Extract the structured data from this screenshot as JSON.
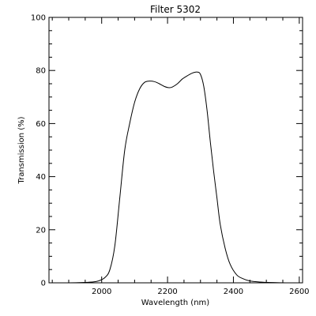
{
  "chart_data": {
    "type": "line",
    "title": "Filter 5302",
    "xlabel": "Wavelength (nm)",
    "ylabel": "Transmission (%)",
    "xlim": [
      1840,
      2610
    ],
    "ylim": [
      0,
      100
    ],
    "x_ticks": [
      2000,
      2200,
      2400,
      2600
    ],
    "y_ticks": [
      0,
      20,
      40,
      60,
      80,
      100
    ],
    "grid": false,
    "series": [
      {
        "color": "#000000",
        "x": [
          1840,
          1900,
          1940,
          1970,
          1990,
          2010,
          2025,
          2040,
          2055,
          2070,
          2085,
          2100,
          2115,
          2130,
          2145,
          2160,
          2175,
          2190,
          2205,
          2215,
          2230,
          2245,
          2260,
          2275,
          2290,
          2300,
          2310,
          2320,
          2330,
          2340,
          2350,
          2360,
          2375,
          2390,
          2410,
          2430,
          2450,
          2480,
          2520,
          2560,
          2600
        ],
        "y": [
          0,
          0,
          0.1,
          0.3,
          0.7,
          2,
          5,
          14,
          32,
          50,
          60,
          68,
          73,
          75.5,
          76,
          75.8,
          75,
          74,
          73.5,
          73.8,
          75,
          76.8,
          78,
          79,
          79.4,
          78.5,
          74,
          65,
          53,
          42,
          32,
          22,
          13,
          7,
          3,
          1.5,
          0.7,
          0.3,
          0.1,
          0,
          0
        ]
      }
    ]
  }
}
